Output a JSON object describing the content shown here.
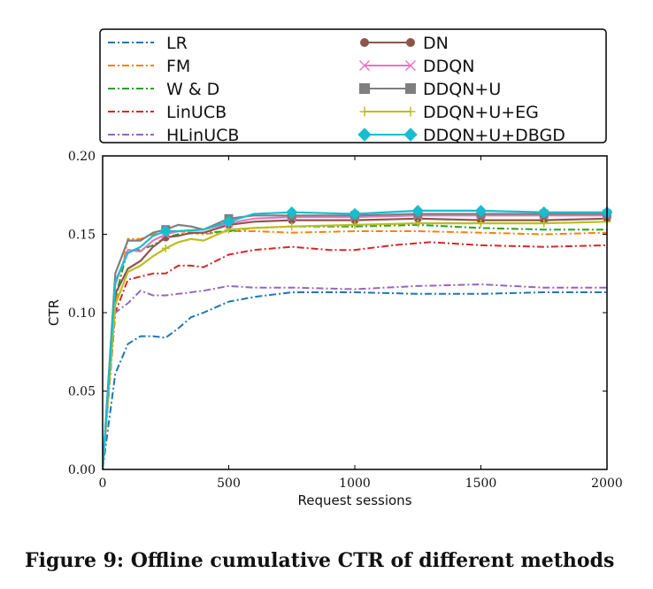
{
  "caption": "Figure 9: Offline cumulative CTR of different methods",
  "chart_data": {
    "type": "line",
    "title": "",
    "xlabel": "Request sessions",
    "ylabel": "CTR",
    "xlim": [
      0,
      2000
    ],
    "ylim": [
      0,
      0.2
    ],
    "xticks": [
      0,
      500,
      1000,
      1500,
      2000
    ],
    "yticks": [
      0.0,
      0.05,
      0.1,
      0.15,
      0.2
    ],
    "xtick_labels": [
      "0",
      "500",
      "1000",
      "1500",
      "2000"
    ],
    "ytick_labels": [
      "0.00",
      "0.05",
      "0.10",
      "0.15",
      "0.20"
    ],
    "grid": false,
    "legend_position": "top",
    "series": [
      {
        "name": "LR",
        "color": "#1f77b4",
        "dash": "dashdot",
        "marker": "none",
        "x": [
          0,
          50,
          100,
          150,
          200,
          250,
          300,
          350,
          400,
          500,
          600,
          750,
          1000,
          1250,
          1500,
          1750,
          2000
        ],
        "y": [
          0.0,
          0.061,
          0.08,
          0.085,
          0.085,
          0.084,
          0.09,
          0.097,
          0.1,
          0.107,
          0.11,
          0.113,
          0.113,
          0.112,
          0.112,
          0.113,
          0.113
        ]
      },
      {
        "name": "FM",
        "color": "#ff7f0e",
        "dash": "dashdot",
        "marker": "none",
        "x": [
          0,
          50,
          100,
          150,
          200,
          250,
          300,
          400,
          500,
          600,
          750,
          1000,
          1250,
          1500,
          1750,
          2000
        ],
        "y": [
          0.0,
          0.105,
          0.147,
          0.147,
          0.15,
          0.151,
          0.152,
          0.15,
          0.152,
          0.152,
          0.151,
          0.152,
          0.152,
          0.151,
          0.15,
          0.151
        ]
      },
      {
        "name": "W & D",
        "color": "#2ca02c",
        "dash": "dashdot",
        "marker": "none",
        "x": [
          0,
          50,
          100,
          150,
          200,
          250,
          300,
          400,
          500,
          600,
          750,
          1000,
          1250,
          1500,
          1750,
          2000
        ],
        "y": [
          0.0,
          0.11,
          0.14,
          0.14,
          0.143,
          0.148,
          0.15,
          0.151,
          0.152,
          0.154,
          0.155,
          0.155,
          0.156,
          0.154,
          0.153,
          0.153
        ]
      },
      {
        "name": "LinUCB",
        "color": "#d62728",
        "dash": "dashdot",
        "marker": "none",
        "x": [
          0,
          50,
          100,
          150,
          200,
          250,
          300,
          350,
          400,
          500,
          600,
          750,
          900,
          1000,
          1150,
          1300,
          1500,
          1750,
          2000
        ],
        "y": [
          0.0,
          0.1,
          0.121,
          0.123,
          0.125,
          0.125,
          0.13,
          0.13,
          0.129,
          0.137,
          0.14,
          0.142,
          0.14,
          0.14,
          0.143,
          0.145,
          0.143,
          0.142,
          0.143
        ]
      },
      {
        "name": "HLinUCB",
        "color": "#9467bd",
        "dash": "dashdot",
        "marker": "none",
        "x": [
          0,
          50,
          100,
          150,
          200,
          250,
          300,
          400,
          500,
          600,
          750,
          1000,
          1250,
          1500,
          1750,
          2000
        ],
        "y": [
          0.0,
          0.1,
          0.106,
          0.114,
          0.111,
          0.111,
          0.112,
          0.114,
          0.117,
          0.116,
          0.116,
          0.115,
          0.117,
          0.118,
          0.116,
          0.116
        ]
      },
      {
        "name": "DN",
        "color": "#8c564b",
        "dash": "solid",
        "marker": "circle",
        "x": [
          0,
          50,
          100,
          150,
          200,
          250,
          300,
          350,
          400,
          500,
          600,
          750,
          1000,
          1250,
          1500,
          1750,
          2000
        ],
        "y": [
          0.0,
          0.112,
          0.128,
          0.133,
          0.142,
          0.148,
          0.149,
          0.151,
          0.151,
          0.156,
          0.158,
          0.159,
          0.159,
          0.16,
          0.159,
          0.159,
          0.16
        ]
      },
      {
        "name": "DDQN",
        "color": "#e377c2",
        "dash": "solid",
        "marker": "x",
        "x": [
          0,
          50,
          100,
          150,
          200,
          250,
          300,
          400,
          500,
          600,
          750,
          1000,
          1250,
          1500,
          1750,
          2000
        ],
        "y": [
          0.0,
          0.118,
          0.14,
          0.139,
          0.146,
          0.15,
          0.152,
          0.153,
          0.157,
          0.16,
          0.161,
          0.161,
          0.162,
          0.162,
          0.162,
          0.162
        ]
      },
      {
        "name": "DDQN+U",
        "color": "#7f7f7f",
        "dash": "solid",
        "marker": "square",
        "x": [
          0,
          50,
          100,
          150,
          200,
          250,
          300,
          350,
          400,
          500,
          600,
          750,
          1000,
          1250,
          1500,
          1750,
          2000
        ],
        "y": [
          0.0,
          0.125,
          0.146,
          0.146,
          0.151,
          0.153,
          0.156,
          0.155,
          0.153,
          0.16,
          0.162,
          0.162,
          0.162,
          0.163,
          0.163,
          0.163,
          0.163
        ]
      },
      {
        "name": "DDQN+U+EG",
        "color": "#bcbd22",
        "dash": "solid",
        "marker": "plus",
        "x": [
          0,
          50,
          100,
          150,
          200,
          250,
          300,
          350,
          400,
          500,
          600,
          750,
          1000,
          1250,
          1500,
          1750,
          2000
        ],
        "y": [
          0.0,
          0.105,
          0.126,
          0.13,
          0.136,
          0.141,
          0.145,
          0.147,
          0.146,
          0.153,
          0.154,
          0.155,
          0.156,
          0.157,
          0.157,
          0.157,
          0.158
        ]
      },
      {
        "name": "DDQN+U+DBGD",
        "color": "#17becf",
        "dash": "solid",
        "marker": "diamond",
        "x": [
          0,
          50,
          100,
          150,
          200,
          250,
          300,
          400,
          500,
          600,
          750,
          1000,
          1250,
          1500,
          1750,
          2000
        ],
        "y": [
          0.0,
          0.12,
          0.138,
          0.142,
          0.149,
          0.152,
          0.152,
          0.153,
          0.158,
          0.163,
          0.164,
          0.163,
          0.165,
          0.165,
          0.164,
          0.164
        ]
      }
    ]
  }
}
